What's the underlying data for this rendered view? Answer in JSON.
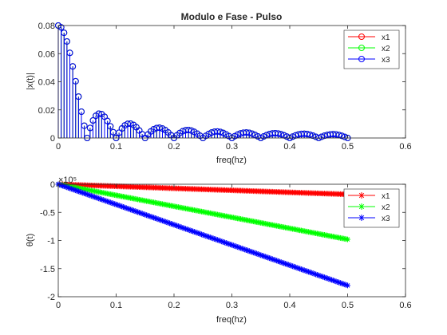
{
  "figure": {
    "background": "#ffffff"
  },
  "chart_data": [
    {
      "type": "line",
      "title": "Modulo e Fase - Pulso",
      "xlabel": "freq(hz)",
      "ylabel": "|x(t)|",
      "xlim": [
        0,
        0.6
      ],
      "ylim": [
        0,
        0.08
      ],
      "x_ticks": [
        "0",
        "0.1",
        "0.2",
        "0.3",
        "0.4",
        "0.5",
        "0.6"
      ],
      "y_ticks": [
        "0",
        "0.02",
        "0.04",
        "0.06",
        "0.08"
      ],
      "grid": false,
      "legend": "top-right",
      "marker": "circle",
      "stem": true,
      "signal": {
        "shape": "abs-sinc",
        "peak": 0.08,
        "first_zero": 0.05,
        "x_max": 0.5,
        "n_points": 100
      },
      "series": [
        {
          "name": "x1",
          "color": "#ff0000"
        },
        {
          "name": "x2",
          "color": "#00ff00"
        },
        {
          "name": "x3",
          "color": "#0000ff"
        }
      ]
    },
    {
      "type": "line",
      "title": "",
      "xlabel": "freq(hz)",
      "ylabel": "θ(t)",
      "y_exponent": "×10⁵",
      "xlim": [
        0,
        0.6
      ],
      "ylim": [
        -200000,
        0
      ],
      "x_ticks": [
        "0",
        "0.1",
        "0.2",
        "0.3",
        "0.4",
        "0.5",
        "0.6"
      ],
      "y_ticks": [
        "0",
        "-0.5",
        "-1",
        "-1.5",
        "-2"
      ],
      "grid": false,
      "legend": "top-right",
      "marker": "asterisk",
      "n_points": 200,
      "series": [
        {
          "name": "x1",
          "color": "#ff0000",
          "x": [
            0,
            0.5
          ],
          "y": [
            0,
            -18000
          ]
        },
        {
          "name": "x2",
          "color": "#00ff00",
          "x": [
            0,
            0.5
          ],
          "y": [
            0,
            -98000
          ]
        },
        {
          "name": "x3",
          "color": "#0000ff",
          "x": [
            0,
            0.5
          ],
          "y": [
            0,
            -180000
          ]
        }
      ]
    }
  ]
}
